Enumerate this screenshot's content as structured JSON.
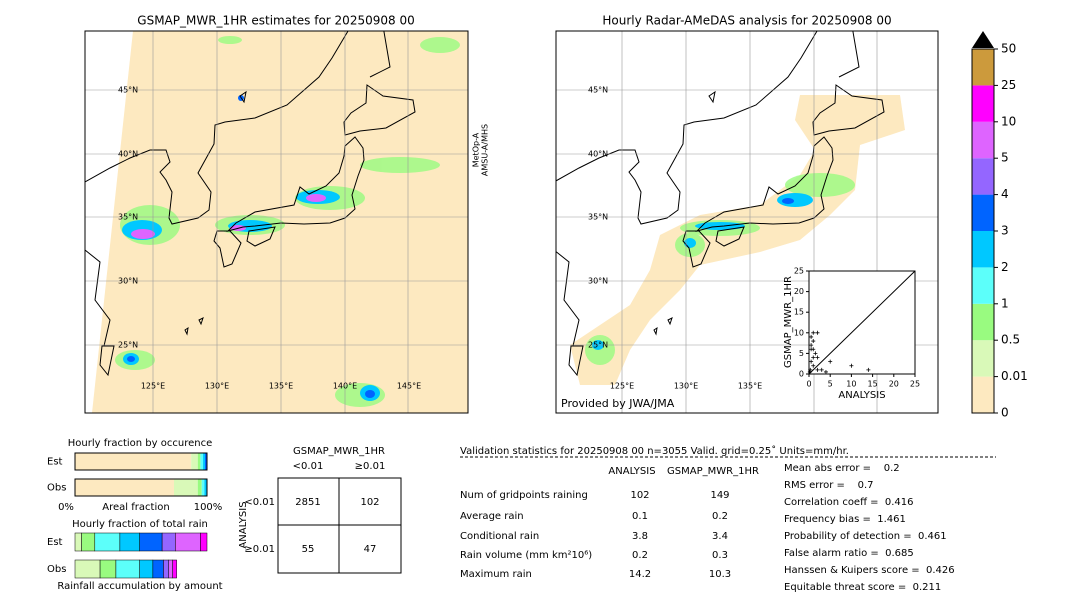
{
  "left_map": {
    "title": "GSMAP_MWR_1HR estimates for 20250908 00",
    "satellite": [
      "MetOp-A",
      "AMSU-A/MHS"
    ],
    "lat_labels": [
      "45°N",
      "40°N",
      "35°N",
      "30°N",
      "25°N"
    ],
    "lon_labels": [
      "125°E",
      "130°E",
      "135°E",
      "140°E",
      "145°E"
    ]
  },
  "right_map": {
    "title": "Hourly Radar-AMeDAS analysis for 20250908 00",
    "credit": "Provided by JWA/JMA",
    "lat_labels": [
      "45°N",
      "40°N",
      "35°N",
      "30°N",
      "25°N"
    ],
    "lon_labels": [
      "125°E",
      "130°E",
      "135°E"
    ]
  },
  "colorbar": {
    "levels": [
      0,
      0.01,
      0.5,
      1,
      2,
      3,
      4,
      5,
      10,
      25,
      50
    ],
    "colors": [
      "#fde9c0",
      "#d9f9b8",
      "#99fb80",
      "#5cfffa",
      "#00c8ff",
      "#0064ff",
      "#9466ff",
      "#de64ff",
      "#ff00ff",
      "#cc9a3c"
    ]
  },
  "scatter": {
    "xlabel": "ANALYSIS",
    "ylabel": "GSMAP_MWR_1HR",
    "xlim": [
      0,
      25
    ],
    "ylim": [
      0,
      25
    ],
    "xticks": [
      0,
      5,
      10,
      15,
      20,
      25
    ],
    "yticks": [
      0,
      5,
      10,
      15,
      20,
      25
    ],
    "x": [
      1,
      2,
      0.5,
      1,
      0.5,
      1,
      1.5,
      2,
      0.5,
      1,
      3,
      5,
      10,
      14,
      0.3,
      0.2,
      2,
      4,
      1,
      0.5
    ],
    "y": [
      10,
      10,
      9,
      8,
      7,
      6,
      5,
      4,
      3,
      2,
      1,
      3,
      2,
      1,
      1,
      0.5,
      1,
      0.5,
      4,
      6
    ]
  },
  "occurrence": {
    "title": "Hourly fraction by occurence",
    "axis_left": "0%",
    "axis_label": "Areal fraction",
    "axis_right": "100%",
    "rows": [
      {
        "label": "Est",
        "segments": [
          {
            "color": "#fde9c0",
            "value": 88
          },
          {
            "color": "#d9f9b8",
            "value": 5
          },
          {
            "color": "#99fb80",
            "value": 2
          },
          {
            "color": "#5cfffa",
            "value": 2
          },
          {
            "color": "#00c8ff",
            "value": 1.5
          },
          {
            "color": "#0064ff",
            "value": 1.5
          }
        ]
      },
      {
        "label": "Obs",
        "segments": [
          {
            "color": "#fde9c0",
            "value": 75
          },
          {
            "color": "#d9f9b8",
            "value": 18
          },
          {
            "color": "#99fb80",
            "value": 3
          },
          {
            "color": "#5cfffa",
            "value": 2
          },
          {
            "color": "#00c8ff",
            "value": 2
          }
        ]
      }
    ]
  },
  "total_rain": {
    "title": "Hourly fraction of total rain",
    "footer": "Rainfall accumulation by amount",
    "rows": [
      {
        "label": "Est",
        "segments": [
          {
            "color": "#d9f9b8",
            "value": 5
          },
          {
            "color": "#99fb80",
            "value": 10
          },
          {
            "color": "#5cfffa",
            "value": 19
          },
          {
            "color": "#00c8ff",
            "value": 15
          },
          {
            "color": "#0064ff",
            "value": 17
          },
          {
            "color": "#9466ff",
            "value": 10
          },
          {
            "color": "#de64ff",
            "value": 19
          },
          {
            "color": "#ff00ff",
            "value": 5
          }
        ]
      },
      {
        "label": "Obs",
        "segments": [
          {
            "color": "#d9f9b8",
            "value": 19
          },
          {
            "color": "#99fb80",
            "value": 12
          },
          {
            "color": "#5cfffa",
            "value": 18
          },
          {
            "color": "#00c8ff",
            "value": 10
          },
          {
            "color": "#0064ff",
            "value": 8
          },
          {
            "color": "#9466ff",
            "value": 4
          },
          {
            "color": "#de64ff",
            "value": 3
          },
          {
            "color": "#ff00ff",
            "value": 3
          }
        ]
      }
    ]
  },
  "contingency": {
    "title": "GSMAP_MWR_1HR",
    "col_labels": [
      "<0.01",
      "≥0.01"
    ],
    "row_axis": "ANALYSIS",
    "row_labels": [
      "<0.01",
      "≥0.01"
    ],
    "cells": [
      [
        2851,
        102
      ],
      [
        55,
        47
      ]
    ]
  },
  "stats": {
    "title": "Validation statistics for 20250908 00  n=3055 Valid. grid=0.25˚ Units=mm/hr.",
    "headers": [
      "ANALYSIS",
      "GSMAP_MWR_1HR"
    ],
    "rows": [
      [
        "Num of gridpoints raining",
        102,
        149
      ],
      [
        "Average rain",
        0.1,
        0.2
      ],
      [
        "Conditional rain",
        3.8,
        3.4
      ],
      [
        "Rain volume (mm km²10⁶)",
        0.2,
        0.3
      ],
      [
        "Maximum rain",
        14.2,
        10.3
      ]
    ],
    "scores": [
      "Mean abs error =    0.2",
      "RMS error =    0.7",
      "Correlation coeff =  0.416",
      "Frequency bias =  1.461",
      "Probability of detection =  0.461",
      "False alarm ratio =  0.685",
      "Hanssen & Kuipers score =  0.426",
      "Equitable threat score =  0.211"
    ]
  }
}
